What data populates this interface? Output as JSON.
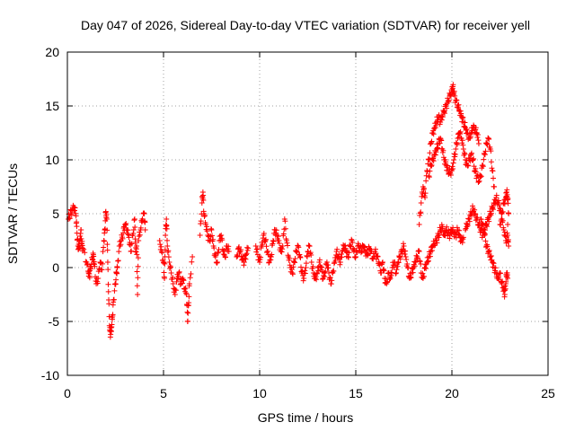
{
  "chart_data": {
    "type": "scatter",
    "title": "Day 047 of 2026, Sidereal Day-to-day VTEC variation (SDTVAR) for receiver yell",
    "xlabel": "GPS time / hours",
    "ylabel": "SDTVAR / TECUs",
    "xlim": [
      0,
      25
    ],
    "ylim": [
      -10,
      20
    ],
    "xticks": [
      "0",
      "5",
      "10",
      "15",
      "20",
      "25"
    ],
    "yticks": [
      "-10",
      "-5",
      "0",
      "5",
      "10",
      "15",
      "20"
    ],
    "grid": true,
    "marker": "+",
    "color": "#ff0000",
    "series": [
      {
        "name": "SDTVAR",
        "points": [
          [
            0.05,
            4.5
          ],
          [
            0.15,
            5.0
          ],
          [
            0.25,
            5.3
          ],
          [
            0.35,
            5.6
          ],
          [
            0.45,
            4.8
          ],
          [
            0.5,
            3.2
          ],
          [
            0.55,
            2.0
          ],
          [
            0.6,
            1.8
          ],
          [
            0.65,
            2.5
          ],
          [
            0.7,
            3.5
          ],
          [
            0.75,
            2.2
          ],
          [
            0.8,
            1.8
          ],
          [
            1.0,
            0.5
          ],
          [
            1.1,
            -0.5
          ],
          [
            1.15,
            -0.8
          ],
          [
            1.2,
            0.0
          ],
          [
            1.3,
            0.8
          ],
          [
            1.35,
            1.2
          ],
          [
            1.4,
            0.3
          ],
          [
            1.5,
            -1.5
          ],
          [
            1.6,
            -1.0
          ],
          [
            1.7,
            0.5
          ],
          [
            1.8,
            -0.2
          ],
          [
            1.9,
            2.5
          ],
          [
            1.95,
            3.5
          ],
          [
            2.0,
            5.2
          ],
          [
            2.05,
            4.5
          ],
          [
            2.1,
            0.5
          ],
          [
            2.15,
            -3.0
          ],
          [
            2.2,
            -5.8
          ],
          [
            2.25,
            -6.2
          ],
          [
            2.3,
            -5.5
          ],
          [
            2.35,
            -4.5
          ],
          [
            2.4,
            -3.0
          ],
          [
            2.5,
            -1.5
          ],
          [
            2.55,
            -0.5
          ],
          [
            2.6,
            0.0
          ],
          [
            2.7,
            2.0
          ],
          [
            2.8,
            2.5
          ],
          [
            2.9,
            3.2
          ],
          [
            3.0,
            4.0
          ],
          [
            3.1,
            3.5
          ],
          [
            3.2,
            2.8
          ],
          [
            3.3,
            1.5
          ],
          [
            3.4,
            3.0
          ],
          [
            3.5,
            4.5
          ],
          [
            3.55,
            1.5
          ],
          [
            3.6,
            2.0
          ],
          [
            3.65,
            -2.5
          ],
          [
            3.7,
            2.5
          ],
          [
            3.8,
            3.5
          ],
          [
            3.9,
            4.5
          ],
          [
            4.0,
            5.0
          ],
          [
            4.05,
            3.5
          ],
          [
            4.8,
            2.5
          ],
          [
            4.9,
            1.5
          ],
          [
            5.0,
            0.5
          ],
          [
            5.05,
            -1.0
          ],
          [
            5.1,
            3.0
          ],
          [
            5.15,
            4.5
          ],
          [
            5.2,
            2.0
          ],
          [
            5.3,
            0.5
          ],
          [
            5.4,
            -0.5
          ],
          [
            5.5,
            -1.5
          ],
          [
            5.6,
            -2.5
          ],
          [
            5.7,
            -1.0
          ],
          [
            5.8,
            -0.5
          ],
          [
            5.9,
            -1.5
          ],
          [
            6.0,
            -1.0
          ],
          [
            6.1,
            -2.0
          ],
          [
            6.2,
            -2.5
          ],
          [
            6.25,
            -5.0
          ],
          [
            6.3,
            -3.5
          ],
          [
            6.35,
            -1.5
          ],
          [
            6.5,
            1.0
          ],
          [
            6.9,
            3.0
          ],
          [
            7.0,
            6.0
          ],
          [
            7.05,
            7.0
          ],
          [
            7.1,
            5.0
          ],
          [
            7.2,
            4.0
          ],
          [
            7.3,
            3.0
          ],
          [
            7.4,
            2.5
          ],
          [
            7.5,
            3.5
          ],
          [
            7.6,
            2.0
          ],
          [
            7.7,
            1.0
          ],
          [
            7.8,
            0.5
          ],
          [
            7.9,
            2.5
          ],
          [
            8.0,
            3.0
          ],
          [
            8.1,
            1.5
          ],
          [
            8.2,
            1.0
          ],
          [
            8.3,
            2.0
          ],
          [
            8.4,
            1.5
          ],
          [
            8.8,
            1.0
          ],
          [
            8.9,
            1.8
          ],
          [
            9.0,
            1.5
          ],
          [
            9.1,
            0.8
          ],
          [
            9.2,
            0.5
          ],
          [
            9.3,
            1.2
          ],
          [
            9.4,
            1.8
          ],
          [
            9.8,
            2.0
          ],
          [
            9.9,
            1.2
          ],
          [
            10.0,
            0.5
          ],
          [
            10.1,
            2.0
          ],
          [
            10.2,
            3.0
          ],
          [
            10.3,
            2.5
          ],
          [
            10.4,
            1.5
          ],
          [
            10.5,
            0.5
          ],
          [
            10.6,
            1.0
          ],
          [
            10.7,
            2.5
          ],
          [
            10.8,
            3.5
          ],
          [
            10.9,
            3.0
          ],
          [
            11.0,
            2.5
          ],
          [
            11.1,
            1.5
          ],
          [
            11.2,
            2.0
          ],
          [
            11.3,
            4.5
          ],
          [
            11.4,
            2.5
          ],
          [
            11.5,
            1.0
          ],
          [
            11.6,
            0.0
          ],
          [
            11.7,
            -0.5
          ],
          [
            11.8,
            0.5
          ],
          [
            11.9,
            1.5
          ],
          [
            12.0,
            2.0
          ],
          [
            12.1,
            1.0
          ],
          [
            12.2,
            -0.5
          ],
          [
            12.3,
            -1.0
          ],
          [
            12.4,
            0.0
          ],
          [
            12.5,
            1.5
          ],
          [
            12.6,
            2.0
          ],
          [
            12.7,
            0.5
          ],
          [
            12.8,
            -0.5
          ],
          [
            12.9,
            -1.0
          ],
          [
            13.0,
            -0.5
          ],
          [
            13.1,
            0.5
          ],
          [
            13.2,
            0.0
          ],
          [
            13.3,
            -1.0
          ],
          [
            13.4,
            -0.5
          ],
          [
            13.5,
            0.5
          ],
          [
            13.6,
            -0.5
          ],
          [
            13.7,
            -1.5
          ],
          [
            13.8,
            -0.5
          ],
          [
            13.9,
            0.5
          ],
          [
            14.0,
            1.5
          ],
          [
            14.1,
            1.0
          ],
          [
            14.2,
            0.5
          ],
          [
            14.3,
            1.5
          ],
          [
            14.4,
            2.0
          ],
          [
            14.5,
            1.5
          ],
          [
            14.6,
            1.0
          ],
          [
            14.7,
            2.0
          ],
          [
            14.8,
            2.5
          ],
          [
            14.9,
            1.5
          ],
          [
            15.0,
            1.0
          ],
          [
            15.1,
            2.0
          ],
          [
            15.2,
            1.8
          ],
          [
            15.3,
            1.5
          ],
          [
            15.4,
            2.0
          ],
          [
            15.5,
            1.5
          ],
          [
            15.6,
            1.2
          ],
          [
            15.7,
            1.8
          ],
          [
            15.8,
            1.5
          ],
          [
            15.9,
            0.8
          ],
          [
            16.0,
            1.5
          ],
          [
            16.1,
            1.0
          ],
          [
            16.2,
            0.5
          ],
          [
            16.3,
            -0.5
          ],
          [
            16.4,
            0.5
          ],
          [
            16.5,
            -1.0
          ],
          [
            16.6,
            -1.5
          ],
          [
            16.7,
            -0.5
          ],
          [
            16.8,
            -1.0
          ],
          [
            16.9,
            0.0
          ],
          [
            17.0,
            0.5
          ],
          [
            17.1,
            -0.5
          ],
          [
            17.2,
            0.5
          ],
          [
            17.3,
            1.0
          ],
          [
            17.4,
            1.5
          ],
          [
            17.5,
            2.0
          ],
          [
            17.6,
            1.0
          ],
          [
            17.7,
            0.0
          ],
          [
            17.8,
            -1.0
          ],
          [
            17.9,
            -0.5
          ],
          [
            18.0,
            0.0
          ],
          [
            18.1,
            0.5
          ],
          [
            18.2,
            1.0
          ],
          [
            18.3,
            1.5
          ],
          [
            18.4,
            -0.5
          ],
          [
            18.5,
            -1.0
          ],
          [
            18.6,
            0.0
          ],
          [
            18.7,
            0.5
          ],
          [
            18.8,
            1.0
          ],
          [
            18.9,
            1.5
          ],
          [
            19.0,
            2.0
          ],
          [
            19.1,
            2.2
          ],
          [
            19.2,
            2.5
          ],
          [
            19.3,
            3.0
          ],
          [
            19.4,
            3.5
          ],
          [
            19.5,
            3.8
          ],
          [
            19.6,
            3.0
          ],
          [
            19.7,
            3.5
          ],
          [
            19.8,
            3.2
          ],
          [
            19.9,
            3.0
          ],
          [
            20.0,
            3.5
          ],
          [
            20.1,
            3.2
          ],
          [
            20.2,
            3.0
          ],
          [
            20.3,
            3.5
          ],
          [
            20.4,
            3.0
          ],
          [
            20.5,
            2.5
          ],
          [
            20.6,
            2.8
          ],
          [
            18.3,
            4.0
          ],
          [
            18.4,
            6.0
          ],
          [
            18.5,
            7.5
          ],
          [
            18.6,
            6.5
          ],
          [
            18.7,
            9.0
          ],
          [
            18.8,
            10.0
          ],
          [
            18.9,
            11.5
          ],
          [
            19.0,
            12.5
          ],
          [
            19.1,
            13.0
          ],
          [
            19.2,
            13.5
          ],
          [
            19.3,
            14.0
          ],
          [
            19.4,
            13.5
          ],
          [
            19.5,
            14.0
          ],
          [
            19.6,
            14.5
          ],
          [
            19.7,
            15.0
          ],
          [
            19.8,
            15.5
          ],
          [
            19.9,
            16.0
          ],
          [
            20.0,
            16.5
          ],
          [
            20.05,
            16.8
          ],
          [
            20.1,
            16.2
          ],
          [
            20.2,
            15.5
          ],
          [
            20.3,
            15.0
          ],
          [
            20.4,
            14.5
          ],
          [
            20.5,
            14.0
          ],
          [
            20.6,
            13.5
          ],
          [
            20.7,
            13.0
          ],
          [
            20.8,
            12.5
          ],
          [
            20.9,
            12.0
          ],
          [
            21.0,
            12.5
          ],
          [
            21.1,
            13.0
          ],
          [
            21.2,
            12.8
          ],
          [
            21.3,
            12.5
          ],
          [
            21.4,
            11.5
          ],
          [
            18.8,
            8.5
          ],
          [
            18.9,
            9.5
          ],
          [
            19.0,
            10.0
          ],
          [
            19.1,
            10.5
          ],
          [
            19.2,
            11.0
          ],
          [
            19.3,
            11.5
          ],
          [
            19.4,
            12.0
          ],
          [
            19.5,
            11.0
          ],
          [
            19.6,
            10.0
          ],
          [
            19.7,
            9.5
          ],
          [
            19.8,
            9.0
          ],
          [
            19.9,
            8.8
          ],
          [
            20.0,
            9.0
          ],
          [
            20.1,
            10.0
          ],
          [
            20.2,
            11.0
          ],
          [
            20.3,
            12.0
          ],
          [
            20.4,
            12.5
          ],
          [
            20.5,
            12.0
          ],
          [
            20.6,
            11.0
          ],
          [
            20.7,
            10.0
          ],
          [
            20.8,
            9.5
          ],
          [
            20.9,
            10.0
          ],
          [
            21.0,
            10.5
          ],
          [
            21.1,
            10.0
          ],
          [
            21.2,
            9.0
          ],
          [
            21.3,
            8.5
          ],
          [
            21.4,
            8.0
          ],
          [
            21.5,
            8.5
          ],
          [
            21.6,
            9.5
          ],
          [
            21.7,
            10.5
          ],
          [
            21.8,
            11.5
          ],
          [
            21.9,
            12.0
          ],
          [
            22.0,
            11.0
          ],
          [
            22.1,
            9.0
          ],
          [
            22.2,
            7.5
          ],
          [
            20.7,
            3.5
          ],
          [
            20.8,
            4.0
          ],
          [
            20.9,
            4.5
          ],
          [
            21.0,
            5.0
          ],
          [
            21.1,
            5.5
          ],
          [
            21.2,
            5.0
          ],
          [
            21.3,
            4.5
          ],
          [
            21.4,
            4.0
          ],
          [
            21.5,
            3.5
          ],
          [
            21.6,
            3.0
          ],
          [
            21.7,
            3.5
          ],
          [
            21.8,
            4.0
          ],
          [
            21.9,
            4.5
          ],
          [
            22.0,
            5.0
          ],
          [
            22.1,
            5.5
          ],
          [
            22.2,
            6.0
          ],
          [
            22.3,
            6.5
          ],
          [
            22.4,
            6.0
          ],
          [
            22.5,
            5.5
          ],
          [
            22.6,
            4.5
          ],
          [
            22.7,
            3.5
          ],
          [
            22.8,
            2.5
          ],
          [
            22.9,
            3.0
          ],
          [
            22.95,
            2.0
          ],
          [
            21.5,
            4.5
          ],
          [
            21.6,
            4.0
          ],
          [
            21.7,
            3.0
          ],
          [
            21.8,
            2.0
          ],
          [
            21.9,
            1.5
          ],
          [
            22.0,
            1.0
          ],
          [
            22.1,
            0.5
          ],
          [
            22.2,
            0.0
          ],
          [
            22.3,
            -0.5
          ],
          [
            22.4,
            -1.0
          ],
          [
            22.5,
            -0.5
          ],
          [
            22.6,
            -1.5
          ],
          [
            22.7,
            -2.0
          ],
          [
            22.75,
            -2.5
          ],
          [
            22.8,
            -1.5
          ],
          [
            22.85,
            -0.5
          ],
          [
            22.9,
            -1.0
          ],
          [
            22.5,
            4.0
          ],
          [
            22.6,
            5.0
          ],
          [
            22.7,
            6.0
          ],
          [
            22.8,
            6.5
          ],
          [
            22.85,
            7.0
          ],
          [
            22.9,
            6.5
          ],
          [
            22.95,
            5.0
          ],
          [
            22.9,
            4.0
          ]
        ]
      }
    ]
  }
}
